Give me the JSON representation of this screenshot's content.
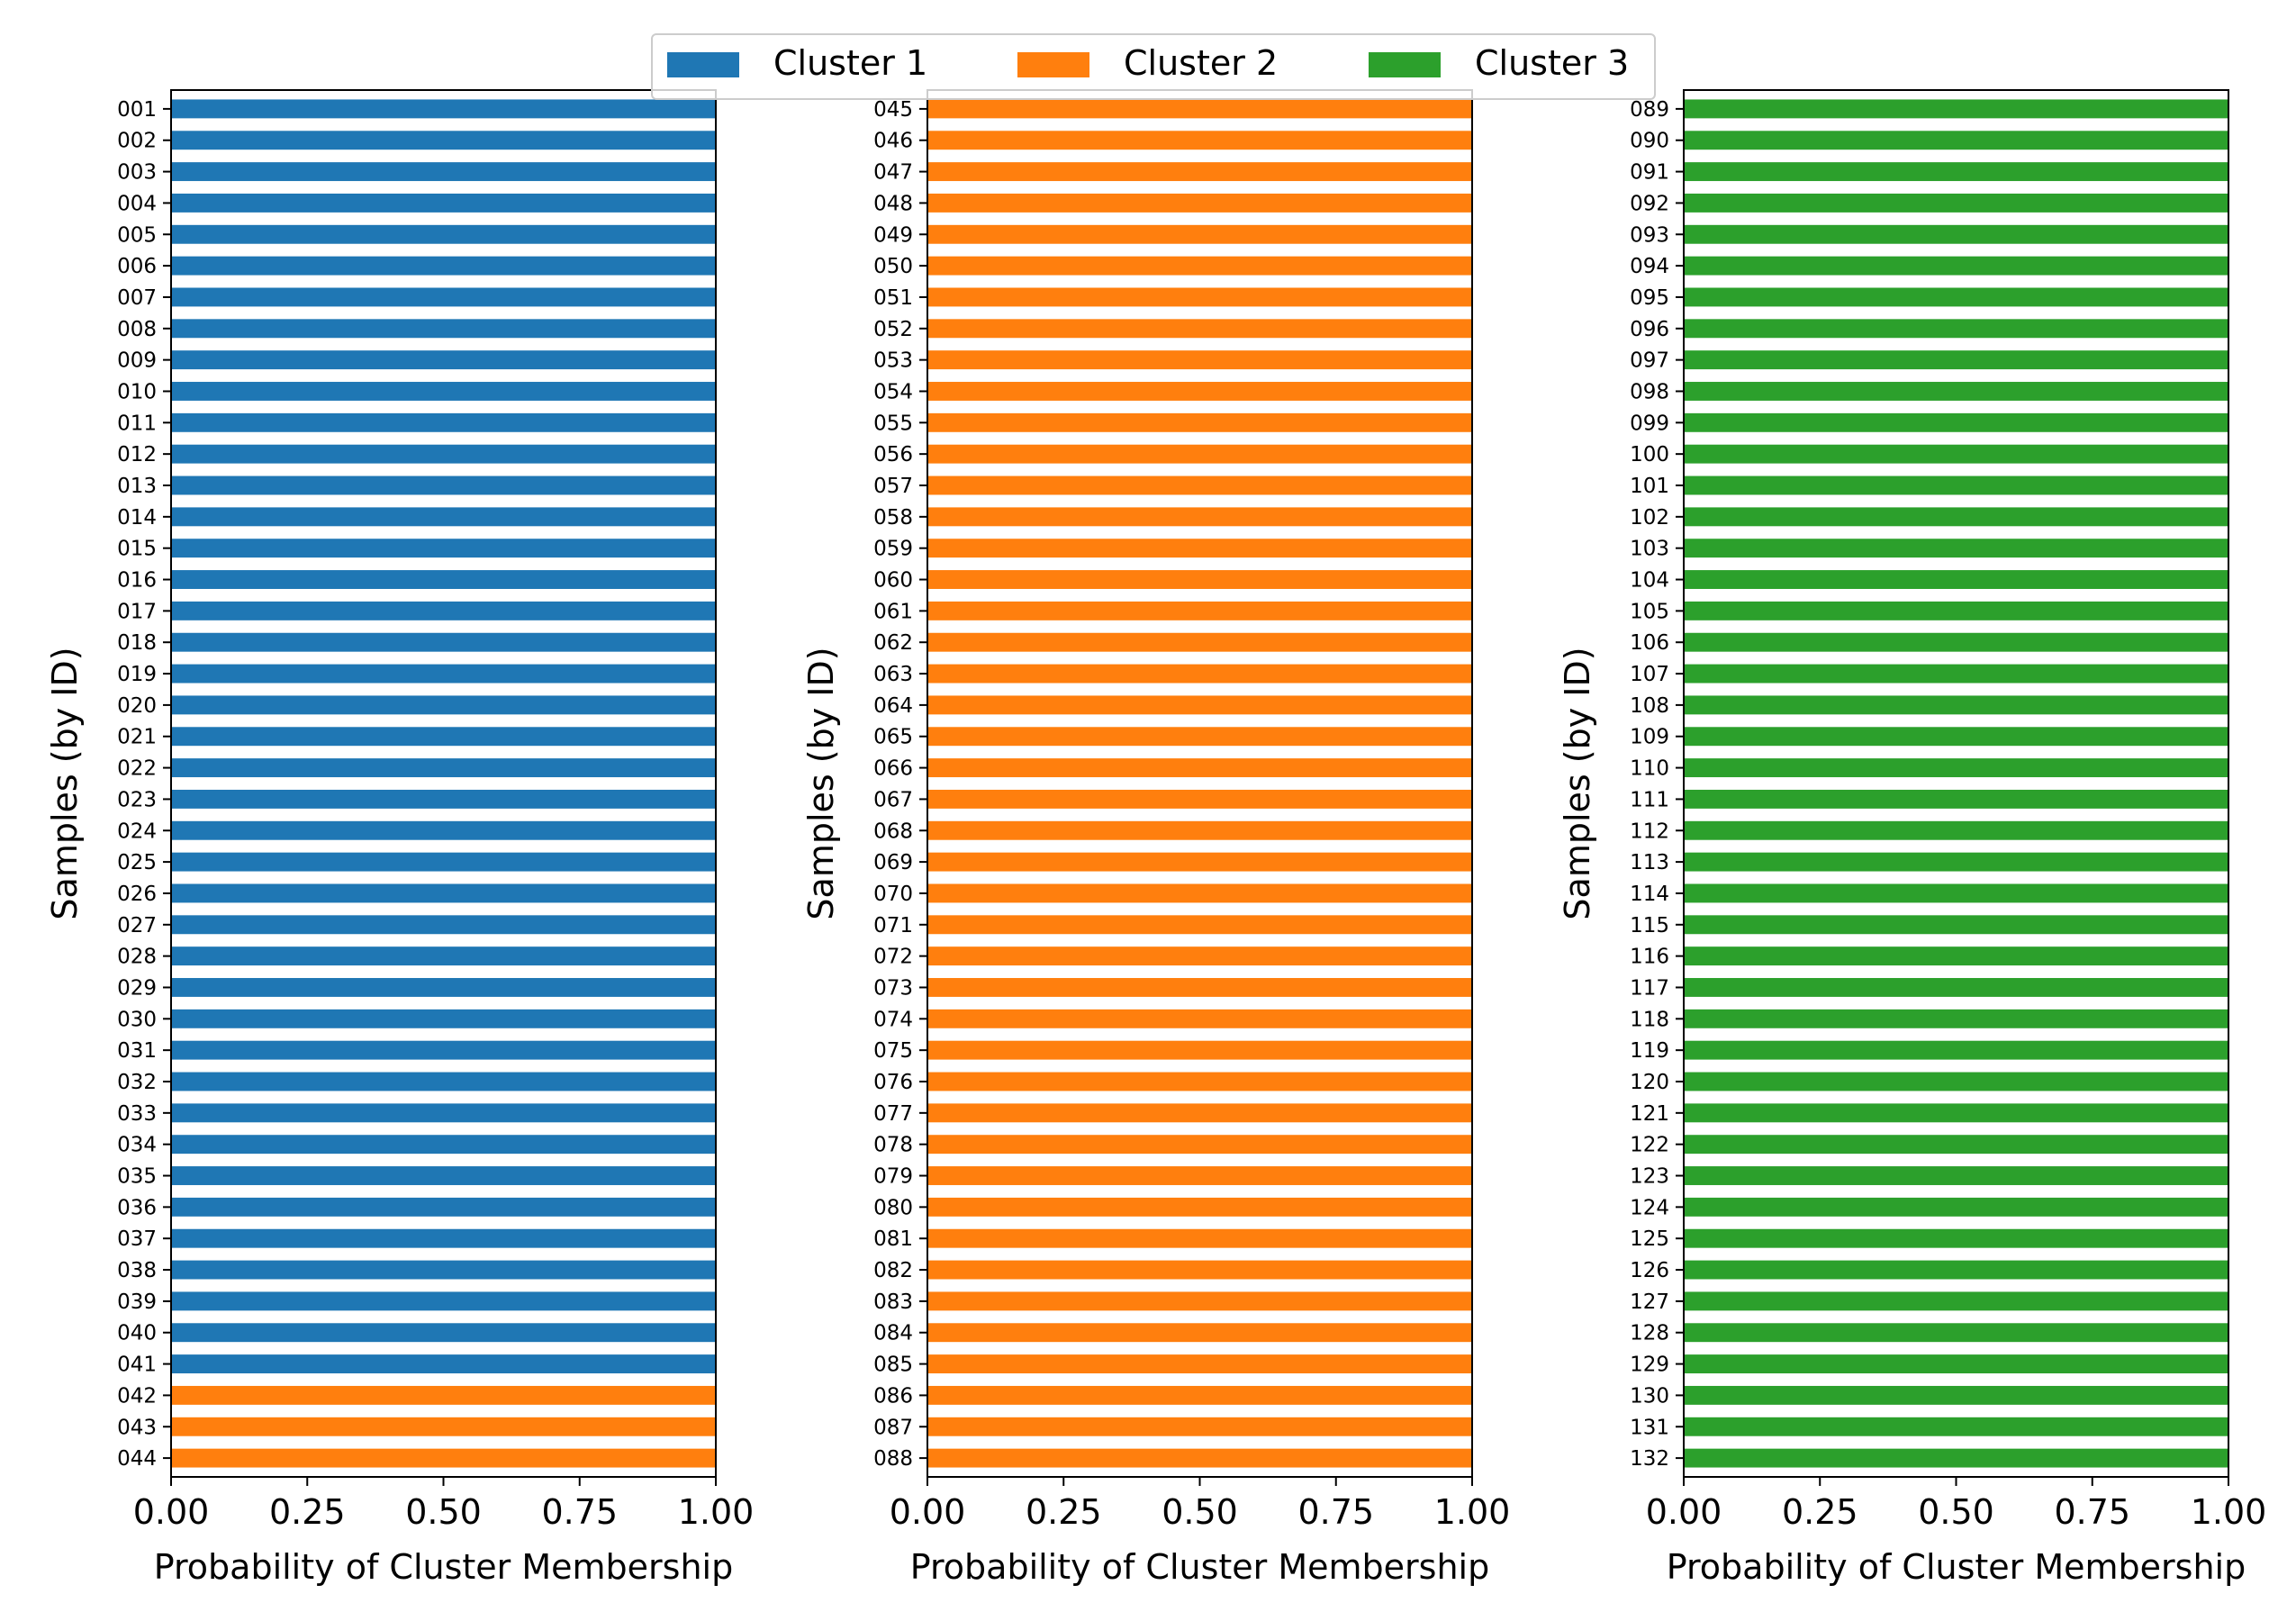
{
  "legend": {
    "placement": "top-center",
    "entries": [
      {
        "label": "Cluster 1",
        "color": "#1f77b4"
      },
      {
        "label": "Cluster 2",
        "color": "#ff7f0e"
      },
      {
        "label": "Cluster 3",
        "color": "#2ca02c"
      }
    ]
  },
  "chart_data": [
    {
      "type": "bar",
      "orientation": "horizontal",
      "stacked": true,
      "xlabel": "Probability of Cluster Membership",
      "ylabel": "Samples (by ID)",
      "xlim": [
        0,
        1
      ],
      "xticks": [
        "0.00",
        "0.25",
        "0.50",
        "0.75",
        "1.00"
      ],
      "categories": [
        "001",
        "002",
        "003",
        "004",
        "005",
        "006",
        "007",
        "008",
        "009",
        "010",
        "011",
        "012",
        "013",
        "014",
        "015",
        "016",
        "017",
        "018",
        "019",
        "020",
        "021",
        "022",
        "023",
        "024",
        "025",
        "026",
        "027",
        "028",
        "029",
        "030",
        "031",
        "032",
        "033",
        "034",
        "035",
        "036",
        "037",
        "038",
        "039",
        "040",
        "041",
        "042",
        "043",
        "044"
      ],
      "series": [
        {
          "name": "Cluster 1",
          "color": "#1f77b4",
          "values": [
            1,
            1,
            1,
            1,
            1,
            1,
            1,
            1,
            1,
            1,
            1,
            1,
            1,
            1,
            1,
            1,
            1,
            1,
            1,
            1,
            1,
            1,
            1,
            1,
            1,
            1,
            1,
            1,
            1,
            1,
            1,
            1,
            1,
            1,
            1,
            1,
            1,
            1,
            1,
            1,
            1,
            0,
            0,
            0
          ]
        },
        {
          "name": "Cluster 2",
          "color": "#ff7f0e",
          "values": [
            0,
            0,
            0,
            0,
            0,
            0,
            0,
            0,
            0,
            0,
            0,
            0,
            0,
            0,
            0,
            0,
            0,
            0,
            0,
            0,
            0,
            0,
            0,
            0,
            0,
            0,
            0,
            0,
            0,
            0,
            0,
            0,
            0,
            0,
            0,
            0,
            0,
            0,
            0,
            0,
            0,
            1,
            1,
            1
          ]
        },
        {
          "name": "Cluster 3",
          "color": "#2ca02c",
          "values": [
            0,
            0,
            0,
            0,
            0,
            0,
            0,
            0,
            0,
            0,
            0,
            0,
            0,
            0,
            0,
            0,
            0,
            0,
            0,
            0,
            0,
            0,
            0,
            0,
            0,
            0,
            0,
            0,
            0,
            0,
            0,
            0,
            0,
            0,
            0,
            0,
            0,
            0,
            0,
            0,
            0,
            0,
            0,
            0
          ]
        }
      ]
    },
    {
      "type": "bar",
      "orientation": "horizontal",
      "stacked": true,
      "xlabel": "Probability of Cluster Membership",
      "ylabel": "Samples (by ID)",
      "xlim": [
        0,
        1
      ],
      "xticks": [
        "0.00",
        "0.25",
        "0.50",
        "0.75",
        "1.00"
      ],
      "categories": [
        "045",
        "046",
        "047",
        "048",
        "049",
        "050",
        "051",
        "052",
        "053",
        "054",
        "055",
        "056",
        "057",
        "058",
        "059",
        "060",
        "061",
        "062",
        "063",
        "064",
        "065",
        "066",
        "067",
        "068",
        "069",
        "070",
        "071",
        "072",
        "073",
        "074",
        "075",
        "076",
        "077",
        "078",
        "079",
        "080",
        "081",
        "082",
        "083",
        "084",
        "085",
        "086",
        "087",
        "088"
      ],
      "series": [
        {
          "name": "Cluster 1",
          "color": "#1f77b4",
          "values": [
            0,
            0,
            0,
            0,
            0,
            0,
            0,
            0,
            0,
            0,
            0,
            0,
            0,
            0,
            0,
            0,
            0,
            0,
            0,
            0,
            0,
            0,
            0,
            0,
            0,
            0,
            0,
            0,
            0,
            0,
            0,
            0,
            0,
            0,
            0,
            0,
            0,
            0,
            0,
            0,
            0,
            0,
            0,
            0
          ]
        },
        {
          "name": "Cluster 2",
          "color": "#ff7f0e",
          "values": [
            1,
            1,
            1,
            1,
            1,
            1,
            1,
            1,
            1,
            1,
            1,
            1,
            1,
            1,
            1,
            1,
            1,
            1,
            1,
            1,
            1,
            1,
            1,
            1,
            1,
            1,
            1,
            1,
            1,
            1,
            1,
            1,
            1,
            1,
            1,
            1,
            1,
            1,
            1,
            1,
            1,
            1,
            1,
            1
          ]
        },
        {
          "name": "Cluster 3",
          "color": "#2ca02c",
          "values": [
            0,
            0,
            0,
            0,
            0,
            0,
            0,
            0,
            0,
            0,
            0,
            0,
            0,
            0,
            0,
            0,
            0,
            0,
            0,
            0,
            0,
            0,
            0,
            0,
            0,
            0,
            0,
            0,
            0,
            0,
            0,
            0,
            0,
            0,
            0,
            0,
            0,
            0,
            0,
            0,
            0,
            0,
            0,
            0
          ]
        }
      ]
    },
    {
      "type": "bar",
      "orientation": "horizontal",
      "stacked": true,
      "xlabel": "Probability of Cluster Membership",
      "ylabel": "Samples (by ID)",
      "xlim": [
        0,
        1
      ],
      "xticks": [
        "0.00",
        "0.25",
        "0.50",
        "0.75",
        "1.00"
      ],
      "categories": [
        "089",
        "090",
        "091",
        "092",
        "093",
        "094",
        "095",
        "096",
        "097",
        "098",
        "099",
        "100",
        "101",
        "102",
        "103",
        "104",
        "105",
        "106",
        "107",
        "108",
        "109",
        "110",
        "111",
        "112",
        "113",
        "114",
        "115",
        "116",
        "117",
        "118",
        "119",
        "120",
        "121",
        "122",
        "123",
        "124",
        "125",
        "126",
        "127",
        "128",
        "129",
        "130",
        "131",
        "132"
      ],
      "series": [
        {
          "name": "Cluster 1",
          "color": "#1f77b4",
          "values": [
            0,
            0,
            0,
            0,
            0,
            0,
            0,
            0,
            0,
            0,
            0,
            0,
            0,
            0,
            0,
            0,
            0,
            0,
            0,
            0,
            0,
            0,
            0,
            0,
            0,
            0,
            0,
            0,
            0,
            0,
            0,
            0,
            0,
            0,
            0,
            0,
            0,
            0,
            0,
            0,
            0,
            0,
            0,
            0
          ]
        },
        {
          "name": "Cluster 2",
          "color": "#ff7f0e",
          "values": [
            0,
            0,
            0,
            0,
            0,
            0,
            0,
            0,
            0,
            0,
            0,
            0,
            0,
            0,
            0,
            0,
            0,
            0,
            0,
            0,
            0,
            0,
            0,
            0,
            0,
            0,
            0,
            0,
            0,
            0,
            0,
            0,
            0,
            0,
            0,
            0,
            0,
            0,
            0,
            0,
            0,
            0,
            0,
            0
          ]
        },
        {
          "name": "Cluster 3",
          "color": "#2ca02c",
          "values": [
            1,
            1,
            1,
            1,
            1,
            1,
            1,
            1,
            1,
            1,
            1,
            1,
            1,
            1,
            1,
            1,
            1,
            1,
            1,
            1,
            1,
            1,
            1,
            1,
            1,
            1,
            1,
            1,
            1,
            1,
            1,
            1,
            1,
            1,
            1,
            1,
            1,
            1,
            1,
            1,
            1,
            1,
            1,
            1
          ]
        }
      ]
    }
  ]
}
